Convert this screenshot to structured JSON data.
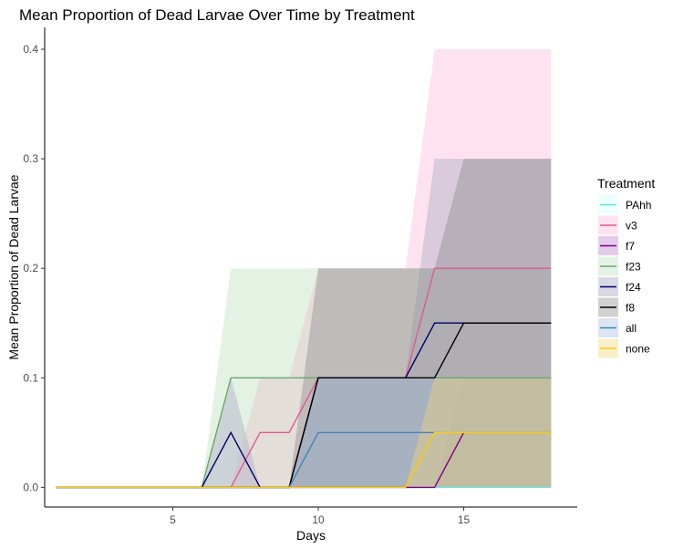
{
  "chart_data": {
    "type": "area",
    "title": "Mean Proportion of Dead Larvae Over Time by Treatment",
    "xlabel": "Days",
    "ylabel": "Mean Proportion of Dead Larvae",
    "xlim": [
      0.6,
      18.9
    ],
    "ylim": [
      -0.018,
      0.42
    ],
    "x_ticks": [
      5,
      10,
      15
    ],
    "y_ticks": [
      0.0,
      0.1,
      0.2,
      0.3,
      0.4
    ],
    "y_tick_labels": [
      "0.0",
      "0.1",
      "0.2",
      "0.3",
      "0.4"
    ],
    "grid": false,
    "legend": {
      "title": "Treatment",
      "position": "right"
    },
    "series": [
      {
        "name": "PAhh",
        "line_color": "#66e5e5",
        "fill_color": "#e0ffff",
        "fill_opacity": 0.55,
        "x": [
          1,
          18
        ],
        "mean": [
          0,
          0
        ],
        "lower": [
          0,
          0
        ],
        "upper": [
          0,
          0
        ]
      },
      {
        "name": "v3",
        "line_color": "#e05a8f",
        "fill_color": "#ffb6d9",
        "fill_opacity": 0.4,
        "x": [
          1,
          7,
          8,
          9,
          10,
          11,
          12,
          13,
          14,
          15,
          16,
          17,
          18
        ],
        "mean": [
          0,
          0,
          0.05,
          0.05,
          0.1,
          0.1,
          0.1,
          0.1,
          0.2,
          0.2,
          0.2,
          0.2,
          0.2
        ],
        "lower": [
          0,
          0,
          0,
          0,
          0,
          0,
          0,
          0,
          0,
          0,
          0,
          0,
          0
        ],
        "upper": [
          0,
          0,
          0.1,
          0.1,
          0.2,
          0.2,
          0.2,
          0.2,
          0.4,
          0.4,
          0.4,
          0.4,
          0.4
        ]
      },
      {
        "name": "f7",
        "line_color": "#800080",
        "fill_color": "#9b59b6",
        "fill_opacity": 0.3,
        "x": [
          1,
          14,
          15,
          16,
          17,
          18
        ],
        "mean": [
          0,
          0,
          0.05,
          0.05,
          0.05,
          0.05
        ],
        "lower": [
          0,
          0,
          0,
          0,
          0,
          0
        ],
        "upper": [
          0,
          0,
          0.1,
          0.1,
          0.1,
          0.1
        ]
      },
      {
        "name": "f23",
        "line_color": "#6aa86a",
        "fill_color": "#a6d4a6",
        "fill_opacity": 0.3,
        "x": [
          1,
          6,
          7,
          8,
          9,
          10,
          11,
          12,
          13,
          14,
          15,
          16,
          17,
          18
        ],
        "mean": [
          0,
          0,
          0.1,
          0.1,
          0.1,
          0.1,
          0.1,
          0.1,
          0.1,
          0.1,
          0.1,
          0.1,
          0.1,
          0.1
        ],
        "lower": [
          0,
          0,
          0,
          0,
          0,
          0,
          0,
          0,
          0,
          0,
          0,
          0,
          0,
          0
        ],
        "upper": [
          0,
          0,
          0.2,
          0.2,
          0.2,
          0.2,
          0.2,
          0.2,
          0.2,
          0.2,
          0.2,
          0.2,
          0.2,
          0.2
        ]
      },
      {
        "name": "f24",
        "line_color": "#000066",
        "fill_color": "#b3b3c8",
        "fill_opacity": 0.5,
        "x": [
          1,
          6,
          7,
          8,
          9,
          10,
          11,
          12,
          13,
          14,
          15,
          16,
          17,
          18
        ],
        "mean": [
          0,
          0,
          0.05,
          0,
          0,
          0.1,
          0.1,
          0.1,
          0.1,
          0.15,
          0.15,
          0.15,
          0.15,
          0.15
        ],
        "lower": [
          0,
          0,
          0,
          0,
          0,
          0,
          0,
          0,
          0,
          0,
          0,
          0,
          0,
          0
        ],
        "upper": [
          0,
          0,
          0.1,
          0,
          0,
          0.1,
          0.1,
          0.1,
          0.1,
          0.3,
          0.3,
          0.3,
          0.3,
          0.3
        ]
      },
      {
        "name": "f8",
        "line_color": "#000000",
        "fill_color": "#7a7a7a",
        "fill_opacity": 0.35,
        "x": [
          1,
          9,
          10,
          11,
          12,
          13,
          14,
          15,
          16,
          17,
          18
        ],
        "mean": [
          0,
          0,
          0.1,
          0.1,
          0.1,
          0.1,
          0.1,
          0.15,
          0.15,
          0.15,
          0.15
        ],
        "lower": [
          0,
          0,
          0,
          0,
          0,
          0,
          0,
          0,
          0,
          0,
          0
        ],
        "upper": [
          0,
          0,
          0.2,
          0.2,
          0.2,
          0.2,
          0.2,
          0.3,
          0.3,
          0.3,
          0.3
        ]
      },
      {
        "name": "all",
        "line_color": "#4682b4",
        "fill_color": "#9bb8d9",
        "fill_opacity": 0.35,
        "x": [
          1,
          9,
          10,
          11,
          12,
          13,
          14,
          15,
          16,
          17,
          18
        ],
        "mean": [
          0,
          0,
          0.05,
          0.05,
          0.05,
          0.05,
          0.05,
          0.05,
          0.05,
          0.05,
          0.05
        ],
        "lower": [
          0,
          0,
          0,
          0,
          0,
          0,
          0,
          0,
          0,
          0,
          0
        ],
        "upper": [
          0,
          0,
          0.1,
          0.1,
          0.1,
          0.1,
          0.1,
          0.1,
          0.1,
          0.1,
          0.1
        ]
      },
      {
        "name": "none",
        "line_color": "#ffcc00",
        "fill_color": "#f0d878",
        "fill_opacity": 0.4,
        "x": [
          1,
          13,
          14,
          15,
          16,
          17,
          18
        ],
        "mean": [
          0,
          0,
          0.05,
          0.05,
          0.05,
          0.05,
          0.05
        ],
        "lower": [
          0,
          0,
          0,
          0,
          0,
          0,
          0
        ],
        "upper": [
          0,
          0,
          0.1,
          0.1,
          0.1,
          0.1,
          0.1
        ]
      }
    ]
  }
}
